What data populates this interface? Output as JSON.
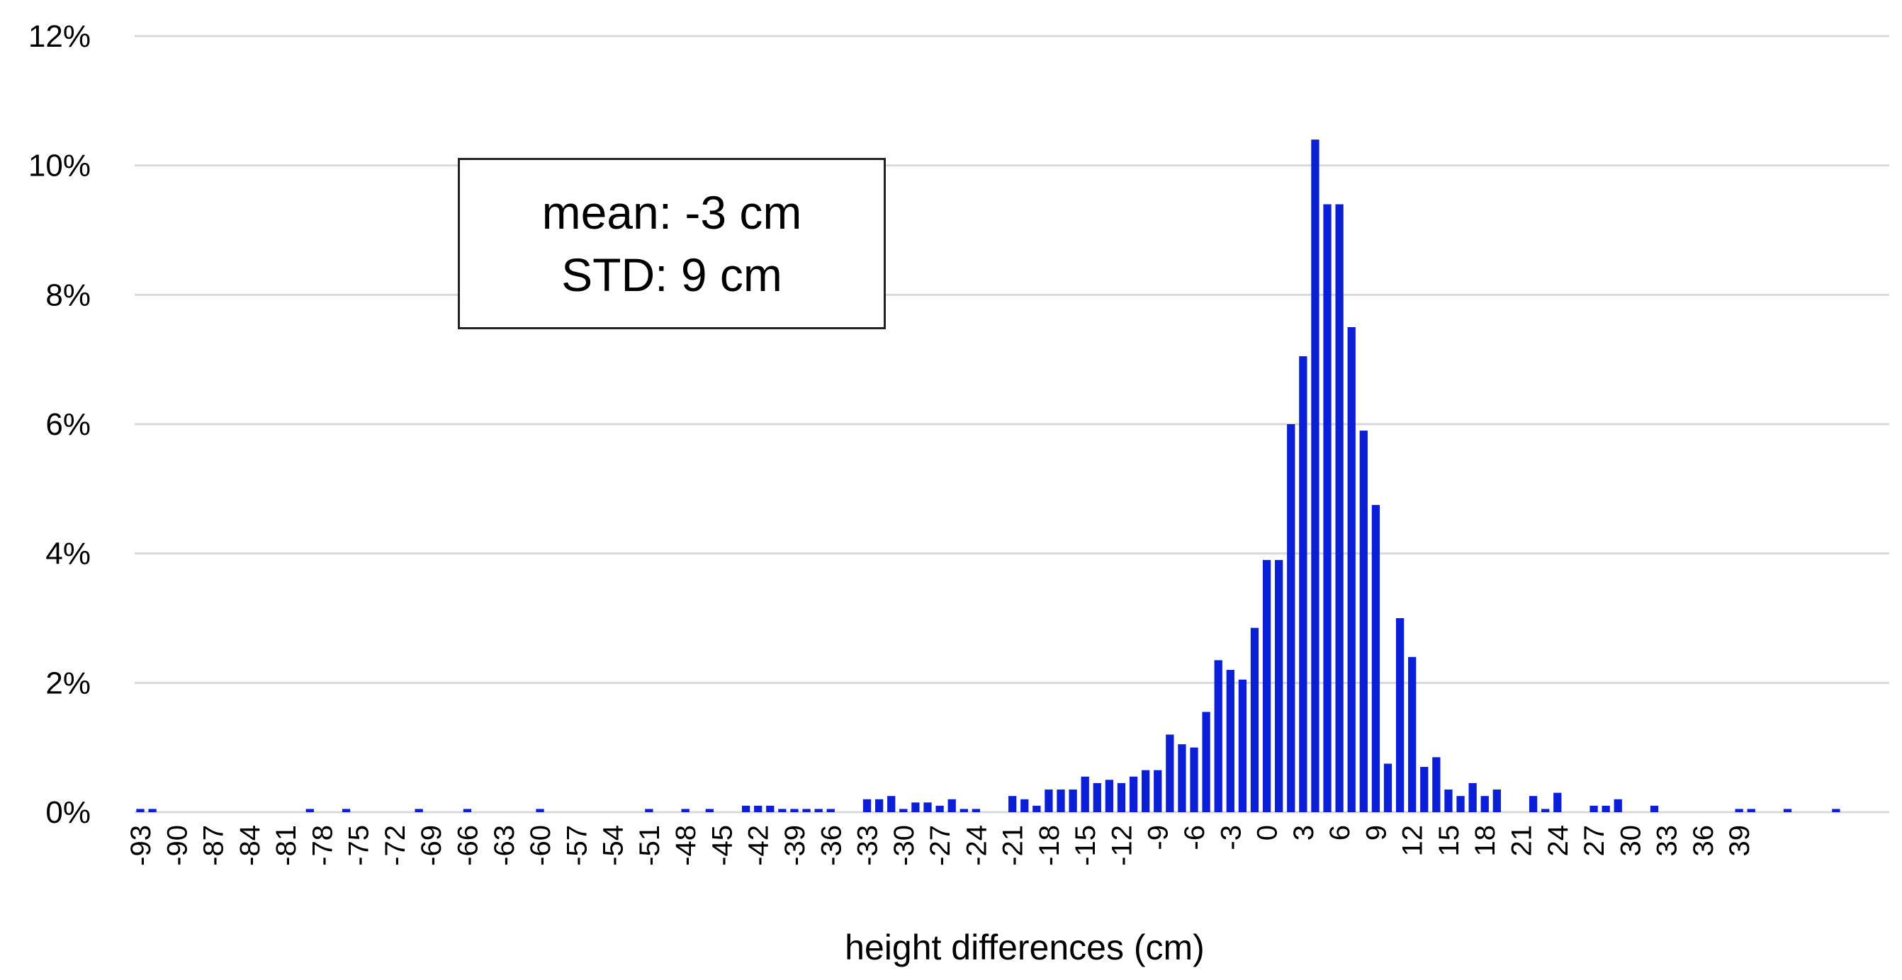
{
  "chart_data": {
    "type": "bar",
    "title": "",
    "xlabel": "height differences (cm)",
    "ylabel": "",
    "ylim": [
      0,
      12
    ],
    "yticks": [
      0,
      2,
      4,
      6,
      8,
      10,
      12
    ],
    "ytick_labels": [
      "0%",
      "2%",
      "4%",
      "6%",
      "8%",
      "10%",
      "12%"
    ],
    "grid": "horizontal",
    "bar_color": "#0a1fd6",
    "grid_color": "#d9d9d9",
    "bin_start": -93,
    "bin_end": 39,
    "xtick_labels": [
      "-93",
      "-90",
      "-87",
      "-84",
      "-81",
      "-78",
      "-75",
      "-72",
      "-69",
      "-66",
      "-63",
      "-60",
      "-57",
      "-54",
      "-51",
      "-48",
      "-45",
      "-42",
      "-39",
      "-36",
      "-33",
      "-30",
      "-27",
      "-24",
      "-21",
      "-18",
      "-15",
      "-12",
      "-9",
      "-6",
      "-3",
      "0",
      "3",
      "6",
      "9",
      "12",
      "15",
      "18",
      "21",
      "24",
      "27",
      "30",
      "33",
      "36",
      "39"
    ],
    "values": [
      0.05,
      0.05,
      0,
      0,
      0,
      0,
      0,
      0,
      0,
      0,
      0,
      0,
      0,
      0,
      0.05,
      0,
      0,
      0.05,
      0,
      0,
      0,
      0,
      0,
      0.05,
      0,
      0,
      0,
      0.05,
      0,
      0,
      0,
      0,
      0,
      0.05,
      0,
      0,
      0,
      0,
      0,
      0,
      0,
      0,
      0.05,
      0,
      0,
      0.05,
      0,
      0.05,
      0,
      0,
      0.1,
      0.1,
      0.1,
      0.05,
      0.05,
      0.05,
      0.05,
      0.05,
      0,
      0,
      0.2,
      0.2,
      0.25,
      0.05,
      0.15,
      0.15,
      0.1,
      0.2,
      0.05,
      0.05,
      0,
      0,
      0.25,
      0.2,
      0.1,
      0.35,
      0.35,
      0.35,
      0.55,
      0.45,
      0.5,
      0.45,
      0.55,
      0.65,
      0.65,
      1.2,
      1.05,
      1.0,
      1.55,
      2.35,
      2.2,
      2.05,
      2.85,
      3.9,
      3.9,
      6.0,
      7.05,
      10.4,
      9.4,
      9.4,
      7.5,
      5.9,
      4.75,
      0.75,
      3.0,
      2.4,
      0.7,
      0.85,
      0.35,
      0.25,
      0.45,
      0.25,
      0.35,
      0,
      0,
      0.25,
      0.05,
      0.3,
      0,
      0,
      0.1,
      0.1,
      0.2,
      0,
      0,
      0.1,
      0,
      0,
      0,
      0,
      0,
      0,
      0.05,
      0.05,
      0,
      0,
      0.05,
      0,
      0,
      0,
      0.05,
      0
    ]
  },
  "stats_box": {
    "mean_line": "mean: -3 cm",
    "std_line": "STD: 9 cm"
  }
}
